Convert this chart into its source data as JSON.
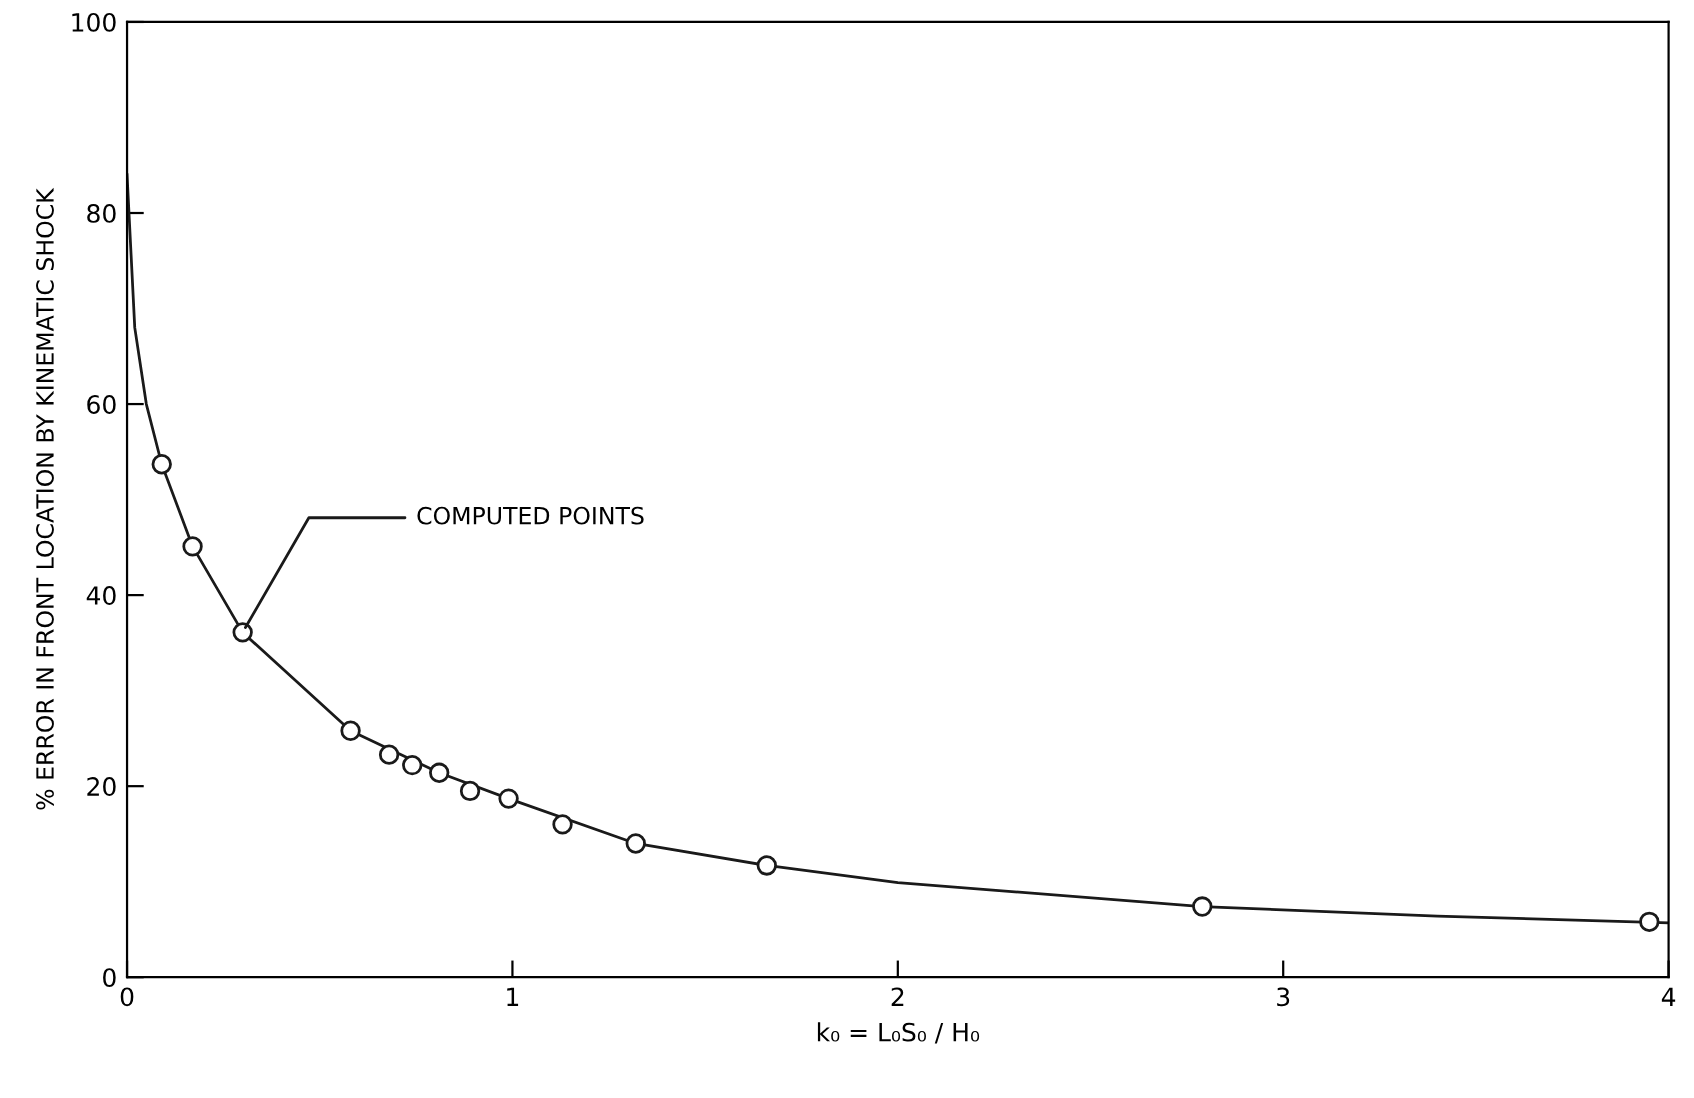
{
  "chart_data": {
    "type": "scatter",
    "xlabel": "k₀ = L₀S₀ / H₀",
    "ylabel": "% ERROR IN FRONT LOCATION BY KINEMATIC SHOCK",
    "xlim": [
      0,
      4
    ],
    "ylim": [
      0,
      100
    ],
    "xticks": [
      0,
      1,
      2,
      3,
      4
    ],
    "yticks": [
      0,
      20,
      40,
      60,
      80,
      100
    ],
    "grid": false,
    "legend": false,
    "series": [
      {
        "type": "line",
        "color": "#1a1a1a",
        "marker": "none",
        "line_style": "solid",
        "x": [
          0,
          0.02,
          0.05,
          0.09,
          0.17,
          0.3,
          0.58,
          0.81,
          0.99,
          1.32,
          1.66,
          2.0,
          2.79,
          3.4,
          4.0
        ],
        "values": [
          84,
          68,
          60,
          53.7,
          45.1,
          36.1,
          25.8,
          21.4,
          18.7,
          14.0,
          11.7,
          9.9,
          7.4,
          6.4,
          5.7
        ]
      },
      {
        "color": "#1a1a1a",
        "marker": "circle",
        "x": [
          0.09,
          0.17,
          0.3,
          0.58,
          0.68,
          0.74,
          0.81,
          0.89,
          0.99,
          1.13,
          1.32,
          1.66,
          2.79,
          3.95
        ],
        "values": [
          53.7,
          45.1,
          36.1,
          25.8,
          23.3,
          22.2,
          21.4,
          19.5,
          18.7,
          16.0,
          14.0,
          11.7,
          7.4,
          5.8
        ]
      }
    ],
    "annotations": [
      {
        "text": "COMPUTED POINTS",
        "x": 0.3,
        "y": 36.1
      }
    ]
  }
}
